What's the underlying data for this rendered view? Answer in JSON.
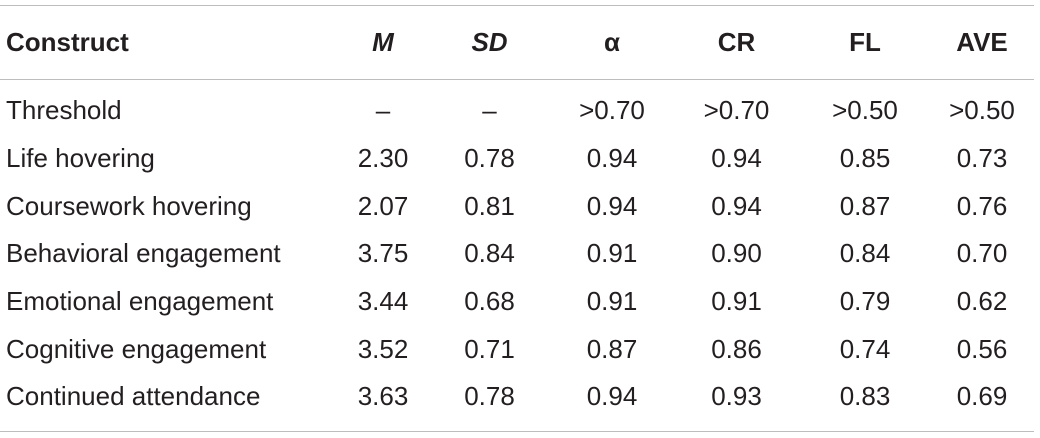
{
  "table": {
    "headers": [
      "Construct",
      "M",
      "SD",
      "α",
      "CR",
      "FL",
      "AVE"
    ],
    "rows": [
      [
        "Threshold",
        "–",
        "–",
        ">0.70",
        ">0.70",
        ">0.50",
        ">0.50"
      ],
      [
        "Life hovering",
        "2.30",
        "0.78",
        "0.94",
        "0.94",
        "0.85",
        "0.73"
      ],
      [
        "Coursework hovering",
        "2.07",
        "0.81",
        "0.94",
        "0.94",
        "0.87",
        "0.76"
      ],
      [
        "Behavioral engagement",
        "3.75",
        "0.84",
        "0.91",
        "0.90",
        "0.84",
        "0.70"
      ],
      [
        "Emotional engagement",
        "3.44",
        "0.68",
        "0.91",
        "0.91",
        "0.79",
        "0.62"
      ],
      [
        "Cognitive engagement",
        "3.52",
        "0.71",
        "0.87",
        "0.86",
        "0.74",
        "0.56"
      ],
      [
        "Continued attendance",
        "3.63",
        "0.78",
        "0.94",
        "0.93",
        "0.83",
        "0.69"
      ]
    ]
  }
}
